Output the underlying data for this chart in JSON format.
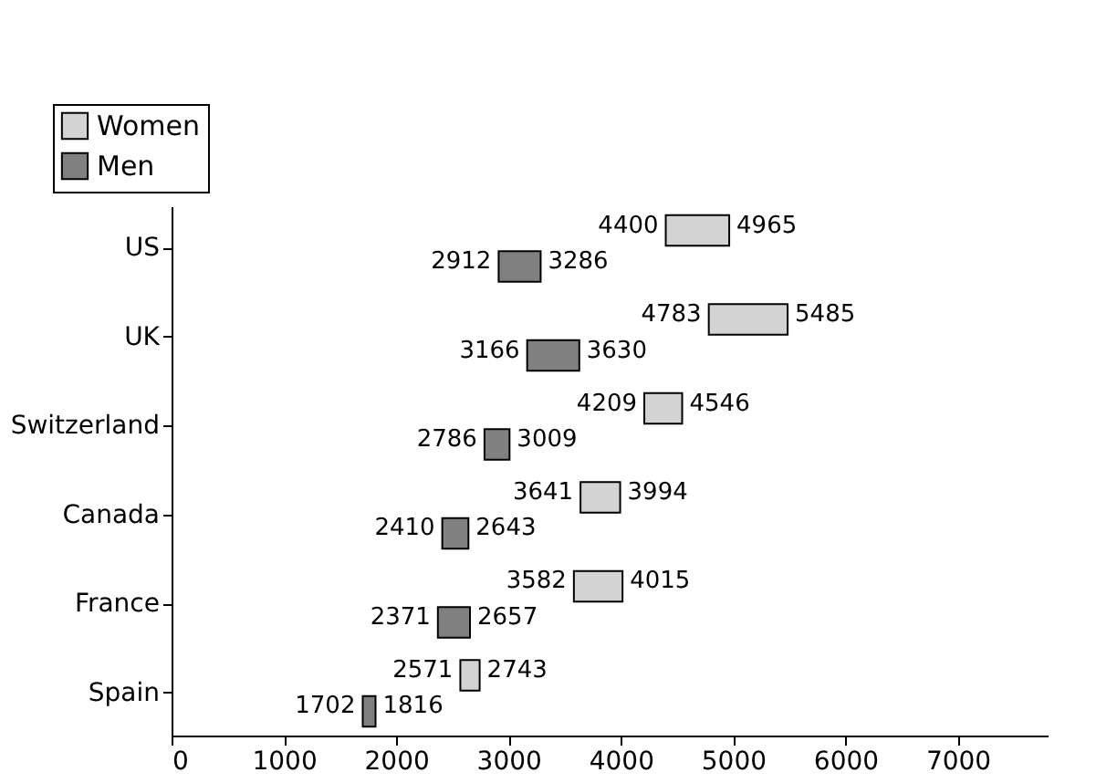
{
  "chart_data": {
    "type": "bar",
    "orientation": "horizontal",
    "categories": [
      "US",
      "UK",
      "Switzerland",
      "Canada",
      "France",
      "Spain"
    ],
    "series": [
      {
        "name": "Women",
        "color": "#d3d3d3",
        "base": [
          4400,
          4783,
          4209,
          3641,
          3582,
          2571
        ],
        "values": [
          565,
          702,
          337,
          353,
          433,
          172
        ]
      },
      {
        "name": "Men",
        "color": "#808080",
        "base": [
          2912,
          3166,
          2786,
          2410,
          2371,
          1702
        ],
        "values": [
          374,
          464,
          223,
          233,
          286,
          114
        ]
      }
    ],
    "xlim": [
      0,
      7800
    ],
    "xticks": [
      0,
      1000,
      2000,
      3000,
      4000,
      5000,
      6000,
      7000
    ],
    "grid": false,
    "legend": "top left",
    "annotations": [
      {
        "text": "4400",
        "x": 4400,
        "y": "US"
      },
      {
        "text": "4965",
        "x": 4965,
        "y": "US"
      },
      {
        "text": "2912",
        "x": 2912,
        "y": "US"
      },
      {
        "text": "3286",
        "x": 3286,
        "y": "US"
      },
      {
        "text": "4783",
        "x": 4783,
        "y": "UK"
      },
      {
        "text": "5485",
        "x": 5485,
        "y": "UK"
      },
      {
        "text": "3166",
        "x": 3166,
        "y": "UK"
      },
      {
        "text": "3630",
        "x": 3630,
        "y": "UK"
      },
      {
        "text": "4209",
        "x": 4209,
        "y": "Switzerland"
      },
      {
        "text": "4546",
        "x": 4546,
        "y": "Switzerland"
      },
      {
        "text": "2786",
        "x": 2786,
        "y": "Switzerland"
      },
      {
        "text": "3009",
        "x": 3009,
        "y": "Switzerland"
      },
      {
        "text": "3641",
        "x": 3641,
        "y": "Canada"
      },
      {
        "text": "3994",
        "x": 3994,
        "y": "Canada"
      },
      {
        "text": "2410",
        "x": 2410,
        "y": "Canada"
      },
      {
        "text": "2643",
        "x": 2643,
        "y": "Canada"
      },
      {
        "text": "3582",
        "x": 3582,
        "y": "France"
      },
      {
        "text": "4015",
        "x": 4015,
        "y": "France"
      },
      {
        "text": "2371",
        "x": 2371,
        "y": "France"
      },
      {
        "text": "2657",
        "x": 2657,
        "y": "France"
      },
      {
        "text": "2571",
        "x": 2571,
        "y": "Spain"
      },
      {
        "text": "2743",
        "x": 2743,
        "y": "Spain"
      },
      {
        "text": "1702",
        "x": 1702,
        "y": "Spain"
      },
      {
        "text": "1816",
        "x": 1816,
        "y": "Spain"
      }
    ]
  }
}
